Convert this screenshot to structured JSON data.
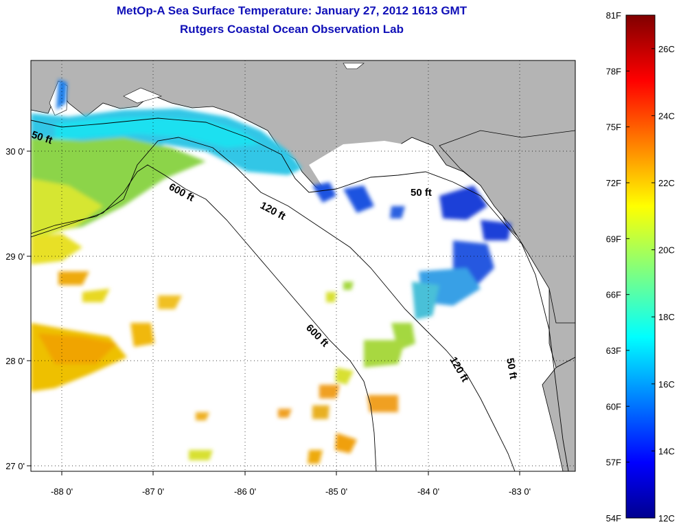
{
  "title": {
    "line1": "MetOp-A Sea Surface Temperature:  January 27, 2012 1613 GMT",
    "line2": "Rutgers Coastal Ocean Observation Lab"
  },
  "map": {
    "lon_ticks": [
      "-88 0'",
      "-87 0'",
      "-86 0'",
      "-85 0'",
      "-84 0'",
      "-83 0'"
    ],
    "lat_ticks": [
      "30 0'",
      "29 0'",
      "28 0'",
      "27 0'"
    ],
    "contour_labels": [
      "50 ft",
      "600 ft",
      "120 ft",
      "50 ft",
      "600 ft",
      "120 ft",
      "50 ft"
    ],
    "colors": {
      "land": "#b4b4b4",
      "cloud": "#ffffff",
      "contour": "#000000"
    }
  },
  "colorbar": {
    "fahrenheit": [
      "81F",
      "78F",
      "75F",
      "72F",
      "69F",
      "66F",
      "63F",
      "60F",
      "57F",
      "54F"
    ],
    "celsius": [
      "26C",
      "24C",
      "22C",
      "20C",
      "18C",
      "16C",
      "14C",
      "12C"
    ],
    "range_f": [
      54,
      81
    ],
    "range_c": [
      12,
      27
    ]
  }
}
